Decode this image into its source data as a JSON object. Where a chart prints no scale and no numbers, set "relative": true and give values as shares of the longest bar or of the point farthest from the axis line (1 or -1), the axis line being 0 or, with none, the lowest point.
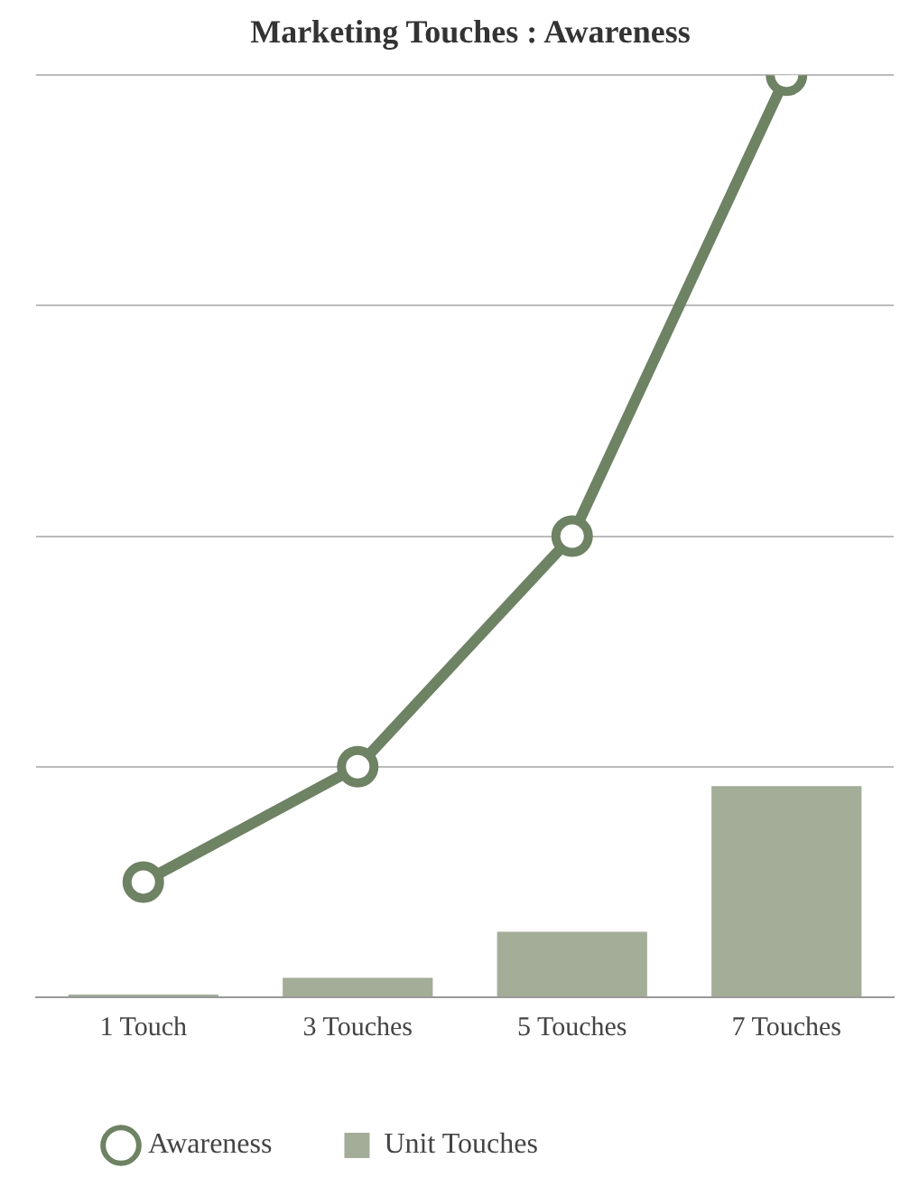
{
  "chart_data": {
    "type": "bar",
    "title": "Marketing Touches : Awareness",
    "categories": [
      "1 Touch",
      "3 Touches",
      "5 Touches",
      "7 Touches"
    ],
    "series": [
      {
        "name": "Awareness",
        "type": "line",
        "color": "#6e8264",
        "marker": "circle",
        "values": [
          0.125,
          0.25,
          0.5,
          1
        ]
      },
      {
        "name": "Unit Touches",
        "color": "#a3ad98",
        "values": [
          0.003,
          0.021,
          0.071,
          0.229
        ]
      }
    ],
    "relative": true,
    "grid": "y",
    "legend": "bottom"
  }
}
